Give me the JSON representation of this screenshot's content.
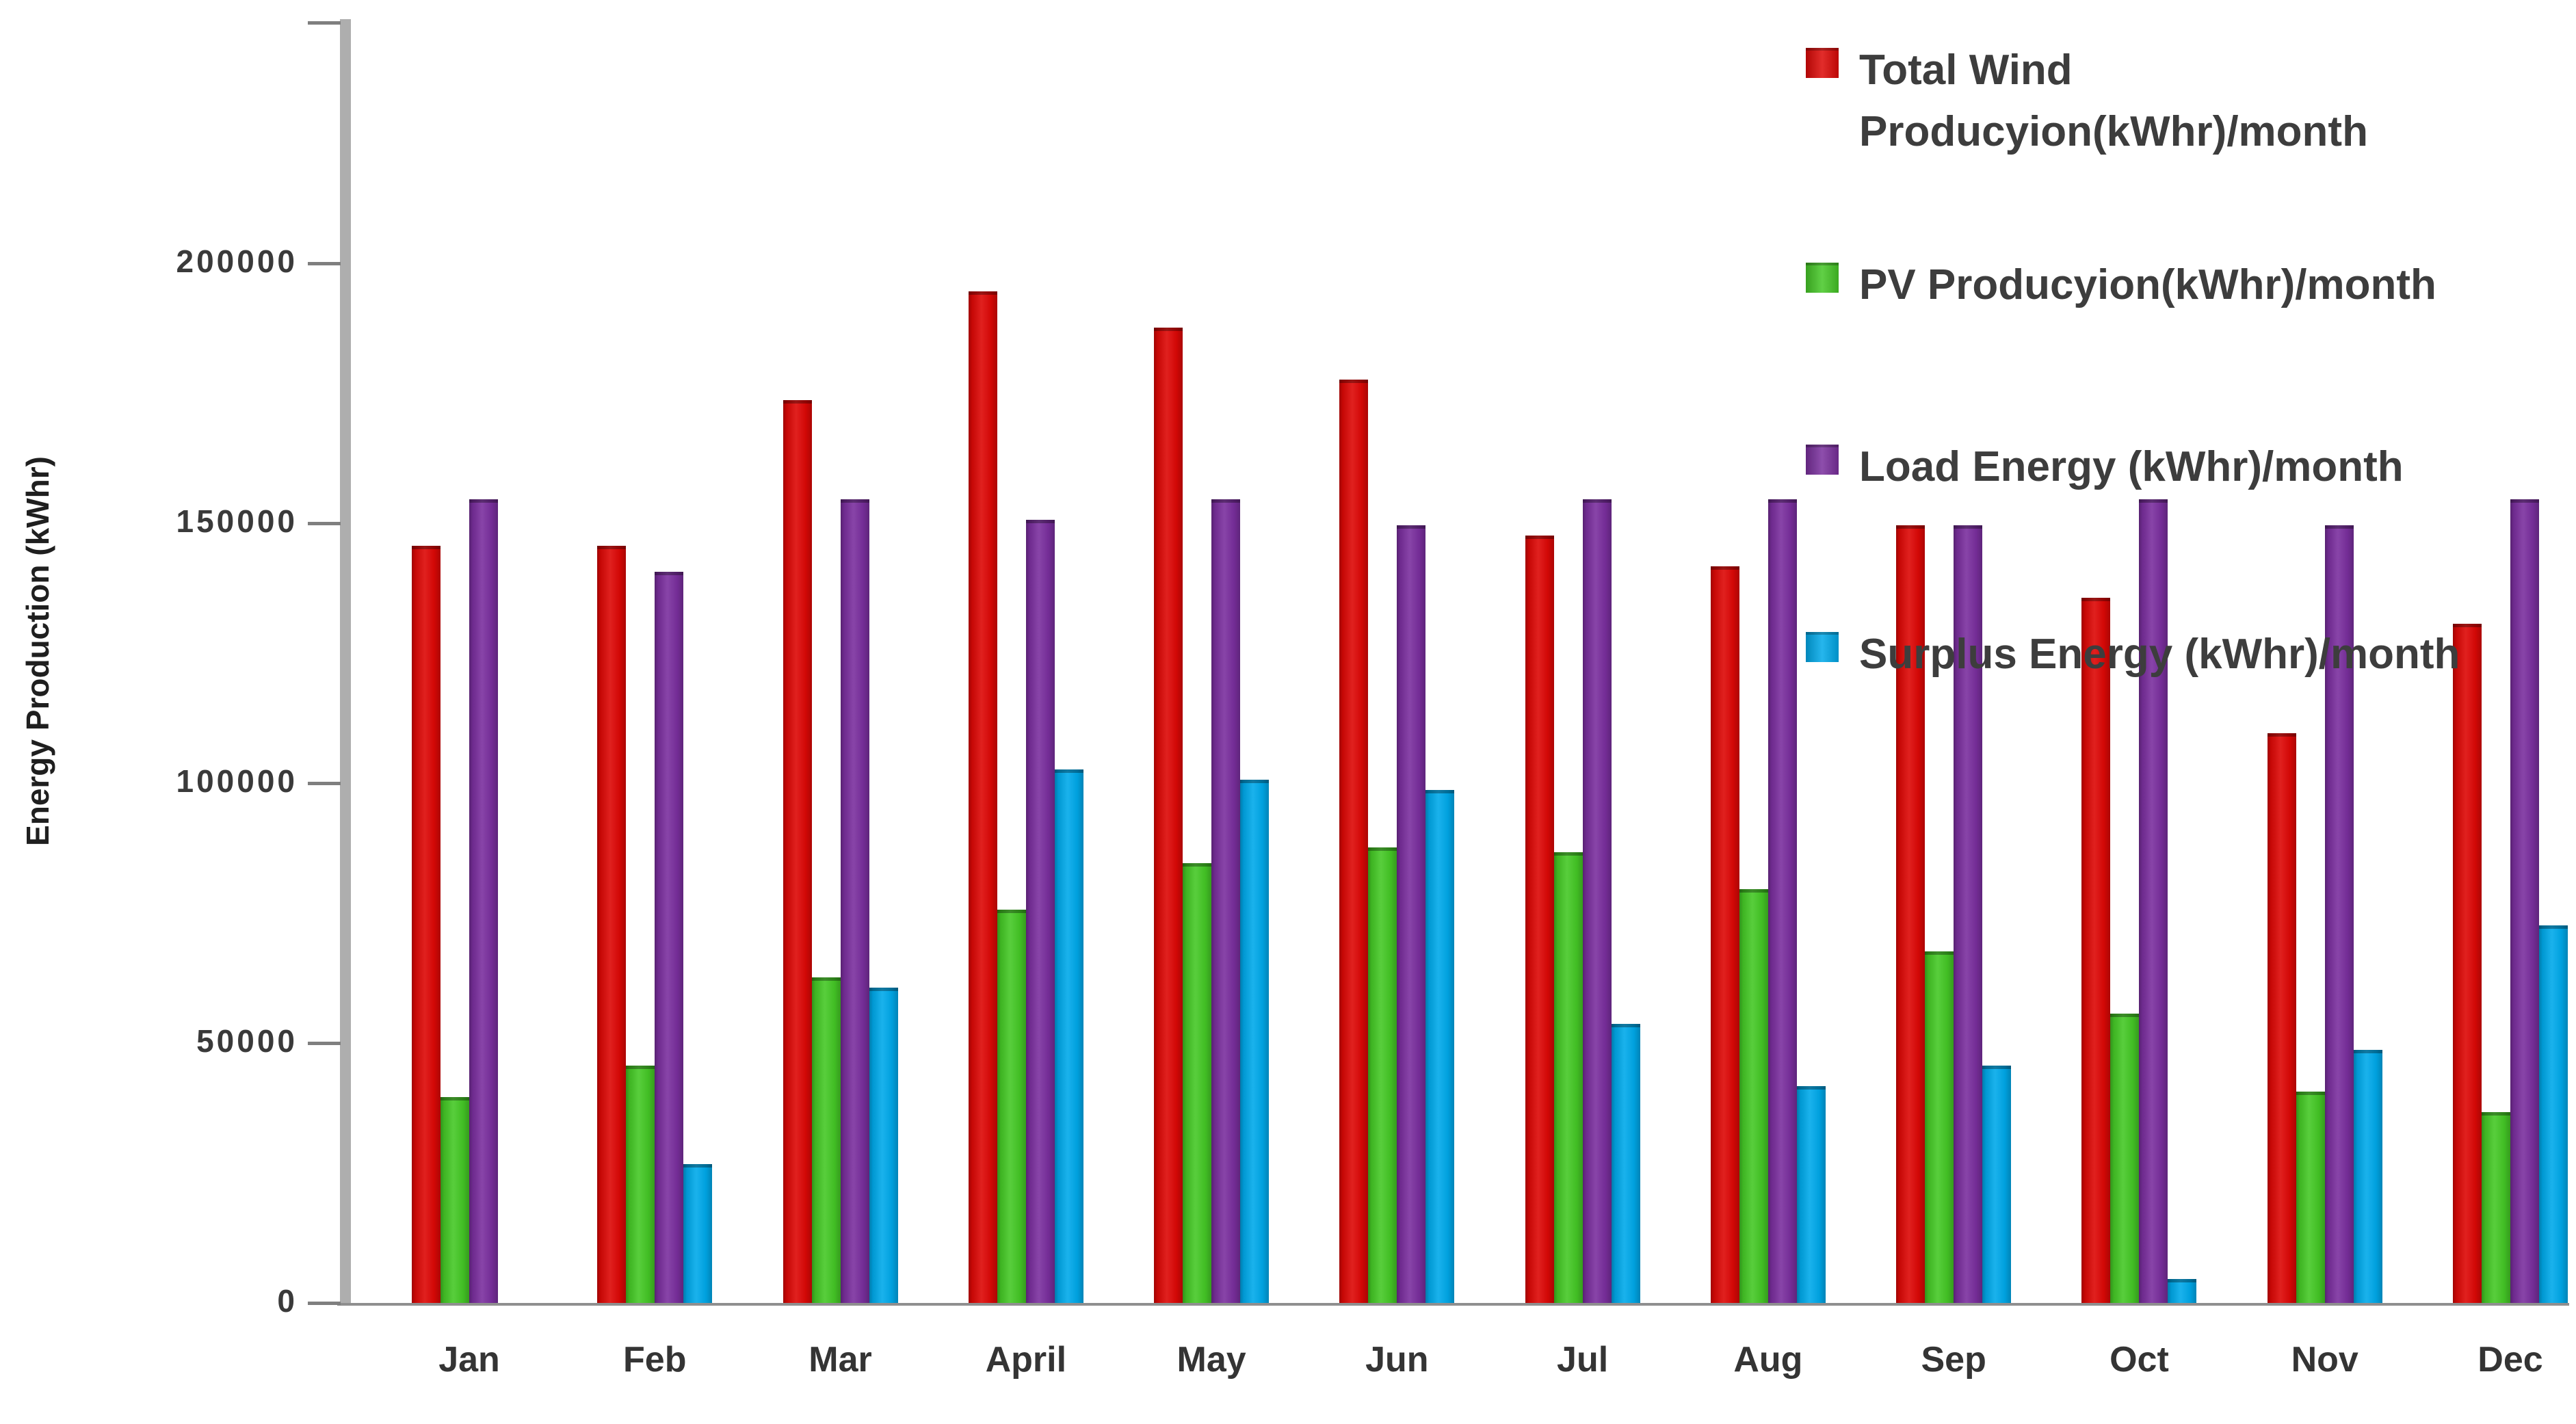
{
  "chart_data": {
    "type": "bar",
    "title": "",
    "xlabel": "",
    "ylabel": "Energy Production (kWhr)",
    "categories": [
      "Jan",
      "Feb",
      "Mar",
      "April",
      "May",
      "Jun",
      "Jul",
      "Aug",
      "Sep",
      "Oct",
      "Nov",
      "Dec"
    ],
    "series": [
      {
        "name": "Total Wind Producyion(kWhr)/month",
        "color": "#dd0806",
        "values": [
          145000,
          145000,
          173000,
          194000,
          187000,
          177000,
          147000,
          141000,
          149000,
          135000,
          109000,
          130000
        ]
      },
      {
        "name": "PV Producyion(kWhr)/month",
        "color": "#45c826",
        "values": [
          39000,
          45000,
          62000,
          75000,
          84000,
          87000,
          86000,
          79000,
          67000,
          55000,
          40000,
          36000
        ]
      },
      {
        "name": "Load Energy (kWhr)/month",
        "color": "#7a2f9e",
        "values": [
          154000,
          140000,
          154000,
          150000,
          154000,
          149000,
          154000,
          154000,
          149000,
          154000,
          149000,
          154000
        ]
      },
      {
        "name": "Surplus Energy (kWhr)/month",
        "color": "#00a9ea",
        "values": [
          0,
          26000,
          60000,
          102000,
          100000,
          98000,
          53000,
          41000,
          45000,
          4000,
          48000,
          72000
        ]
      }
    ],
    "yticks": [
      0,
      50000,
      100000,
      150000,
      200000
    ],
    "ylim": [
      0,
      247000
    ],
    "grid": false,
    "legend_position": "top-right"
  }
}
